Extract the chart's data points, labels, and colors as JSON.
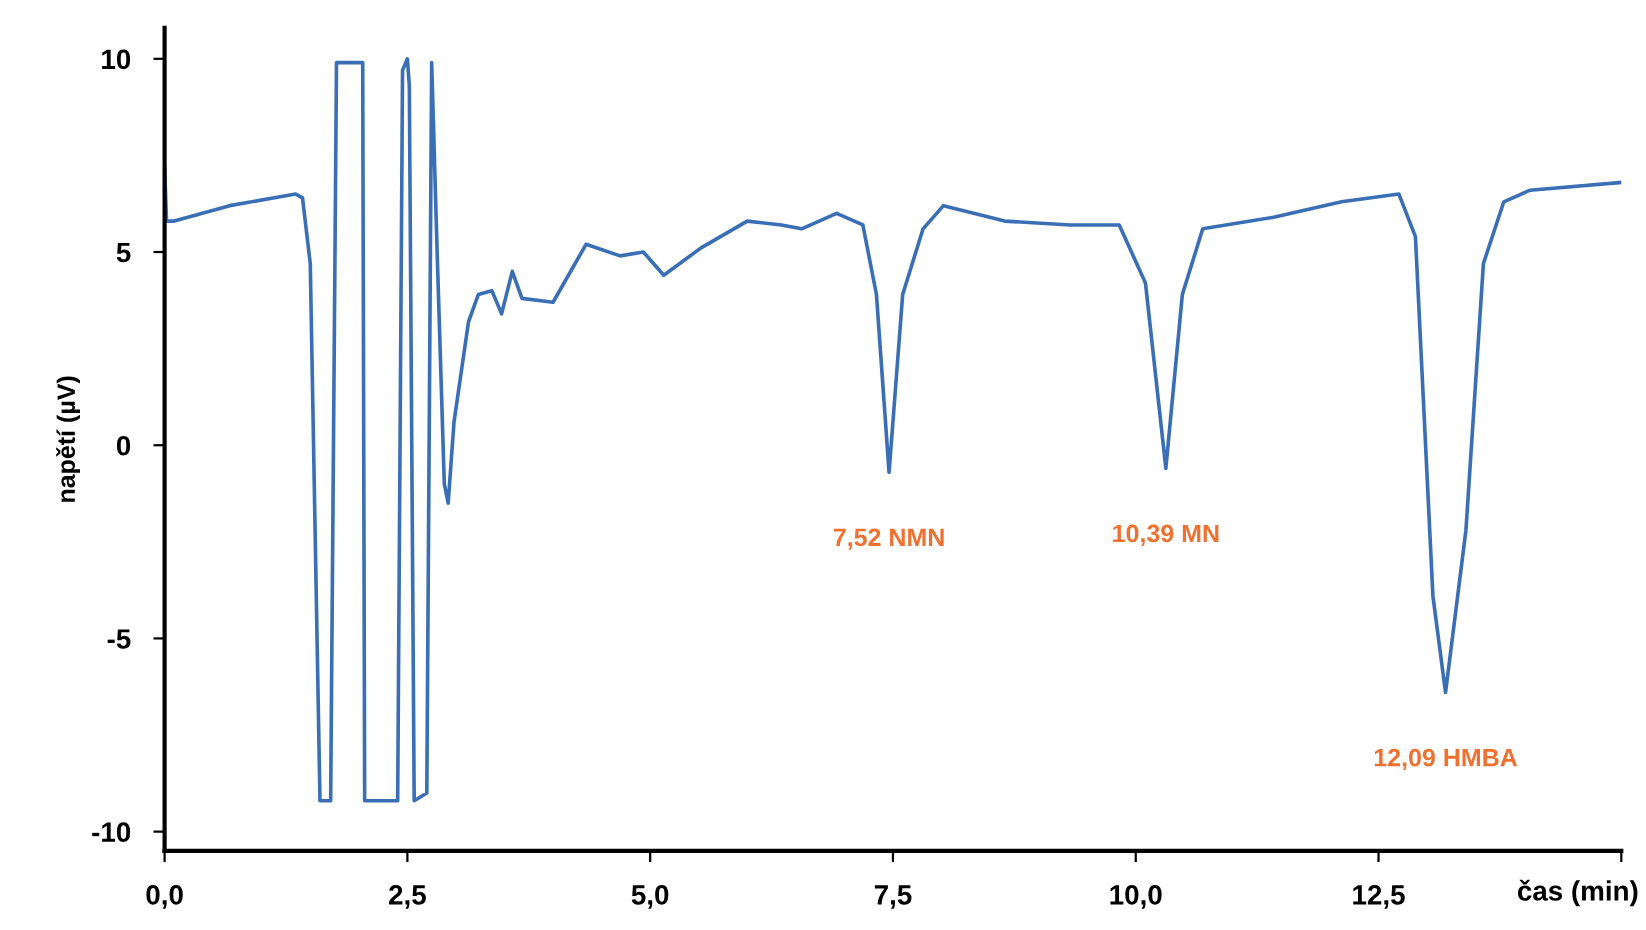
{
  "chart_data": {
    "type": "line",
    "xlabel": "čas (min)",
    "ylabel": "napětí (µV)",
    "x": [
      0,
      0.02,
      0.1,
      0.67,
      1.35,
      1.42,
      1.5,
      1.6,
      1.71,
      1.77,
      2.04,
      2.06,
      2.4,
      2.45,
      2.5,
      2.52,
      2.57,
      2.7,
      2.75,
      2.81,
      2.88,
      2.92,
      2.98,
      3.13,
      3.23,
      3.37,
      3.47,
      3.58,
      3.68,
      4.0,
      4.34,
      4.69,
      4.93,
      5.14,
      5.52,
      6.0,
      6.35,
      6.56,
      6.92,
      7.19,
      7.33,
      7.46,
      7.6,
      7.81,
      8.02,
      8.65,
      9.33,
      9.83,
      10.1,
      10.31,
      10.48,
      10.69,
      11.42,
      12.12,
      12.71,
      12.88,
      13.06,
      13.19,
      13.4,
      13.58,
      13.79,
      14.06,
      15.0
    ],
    "series": [
      {
        "color": "#3a6fb5",
        "values": [
          7.2,
          5.8,
          5.8,
          6.2,
          6.5,
          6.4,
          4.7,
          -9.2,
          -9.2,
          9.9,
          9.9,
          -9.2,
          -9.2,
          9.7,
          10,
          9.3,
          -9.2,
          -9.0,
          9.9,
          4.7,
          -1.0,
          -1.5,
          0.6,
          3.2,
          3.9,
          4.0,
          3.4,
          4.5,
          3.8,
          3.7,
          5.2,
          4.9,
          5.0,
          4.4,
          5.1,
          5.8,
          5.7,
          5.6,
          6.0,
          5.7,
          3.9,
          -0.7,
          3.9,
          5.6,
          6.2,
          5.8,
          5.7,
          5.7,
          4.2,
          -0.6,
          3.9,
          5.6,
          5.9,
          6.3,
          6.5,
          5.4,
          -3.9,
          -6.4,
          -2.2,
          4.7,
          6.3,
          6.6,
          6.8
        ]
      }
    ],
    "xlim": [
      0,
      15
    ],
    "ylim": [
      -10.5,
      10.8
    ],
    "xticks": [
      {
        "value": 0,
        "label": "0,0"
      },
      {
        "value": 2.5,
        "label": "2,5"
      },
      {
        "value": 5,
        "label": "5,0"
      },
      {
        "value": 7.5,
        "label": "7,5"
      },
      {
        "value": 10,
        "label": "10,0"
      },
      {
        "value": 12.5,
        "label": "12,5"
      },
      {
        "value": 15,
        "label": null
      }
    ],
    "yticks": [
      -10,
      -5,
      0,
      5,
      10
    ],
    "annotations": [
      {
        "text": "7,52 NMN",
        "x": 7.46,
        "y": -0.7
      },
      {
        "text": "10,39 MN",
        "x": 10.31,
        "y": -0.6
      },
      {
        "text": "12,09 HMBA",
        "x": 13.19,
        "y": -6.4
      }
    ],
    "grid": false,
    "legend": false,
    "marker": "none",
    "line_style": "solid"
  }
}
